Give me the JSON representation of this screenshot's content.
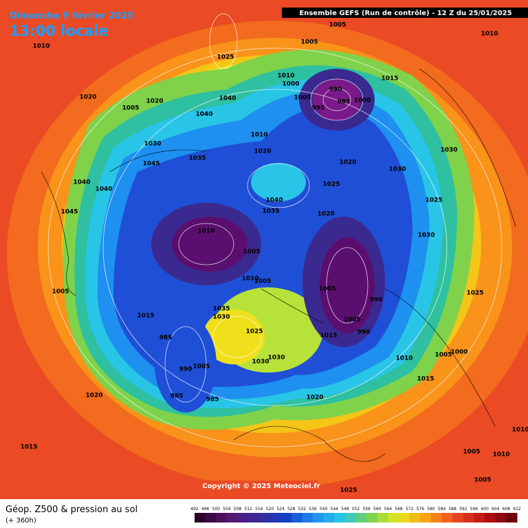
{
  "header": {
    "title": "Dimanche 9 février 2025",
    "time": "13:00 locale",
    "run": "Ensemble GEFS  (Run de contrôle)  -  12 Z du 25/01/2025"
  },
  "footer": {
    "copyright": "Copyright © 2025 Meteociel.fr",
    "variable": "Géop. Z500 & pression au sol",
    "lead": "(+ 360h)"
  },
  "colorbar": {
    "labels": [
      492,
      496,
      500,
      504,
      508,
      512,
      516,
      520,
      524,
      528,
      532,
      536,
      540,
      544,
      548,
      552,
      556,
      560,
      564,
      568,
      572,
      576,
      580,
      584,
      588,
      592,
      596,
      600,
      604,
      608,
      612
    ]
  },
  "pressure_labels": [
    "1010",
    "1025",
    "1005",
    "1005",
    "1010",
    "1020",
    "1005",
    "1020",
    "1040",
    "1040",
    "1010",
    "1000",
    "990",
    "985",
    "995",
    "1000",
    "1005",
    "1015",
    "1010",
    "1020",
    "1035",
    "1030",
    "1045",
    "1020",
    "1030",
    "1025",
    "1030",
    "1025",
    "1040",
    "1040",
    "1045",
    "1040",
    "1035",
    "1020",
    "1010",
    "1005",
    "1030",
    "1010",
    "1005",
    "1005",
    "990",
    "1025",
    "1005",
    "1015",
    "1035",
    "1030",
    "1025",
    "1005",
    "990",
    "1015",
    "985",
    "1030",
    "1030",
    "1010",
    "1005",
    "1000",
    "990",
    "1005",
    "1015",
    "1020",
    "985",
    "985",
    "1020",
    "1015",
    "1010",
    "1005",
    "1005",
    "1025",
    "1010"
  ]
}
